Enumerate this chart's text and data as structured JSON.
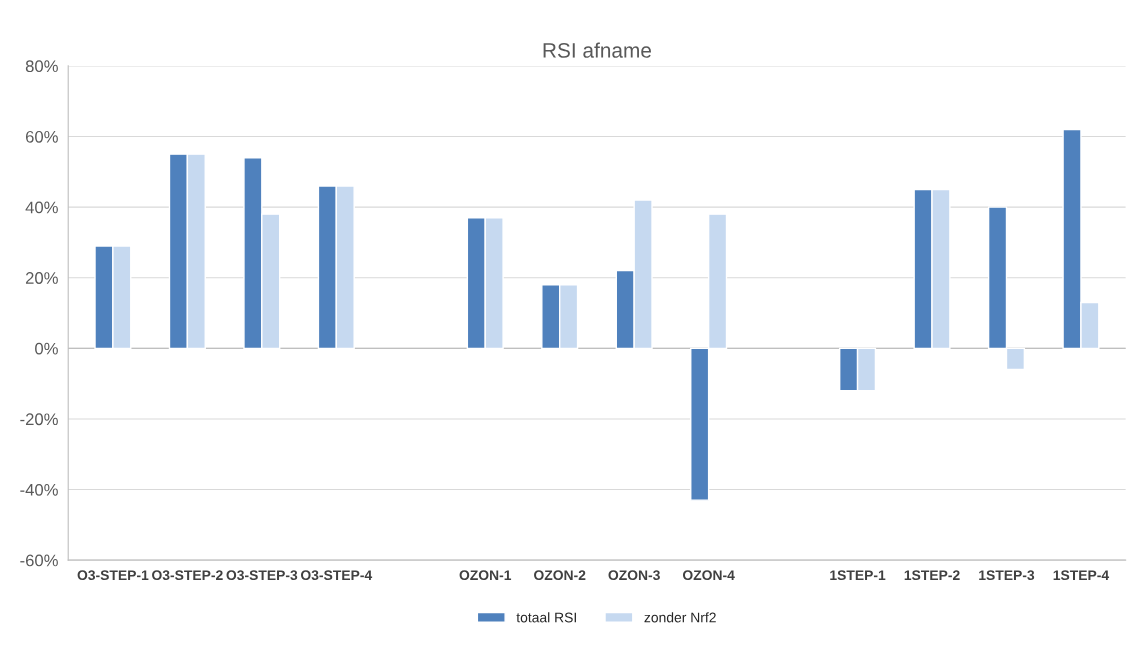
{
  "chart_data": {
    "type": "bar",
    "title": "RSI afname",
    "categories": [
      "O3-STEP-1",
      "O3-STEP-2",
      "O3-STEP-3",
      "O3-STEP-4",
      null,
      "OZON-1",
      "OZON-2",
      "OZON-3",
      "OZON-4",
      null,
      "1STEP-1",
      "1STEP-2",
      "1STEP-3",
      "1STEP-4"
    ],
    "series": [
      {
        "name": "totaal RSI",
        "color": "#4f81bd",
        "values": [
          29,
          55,
          54,
          46,
          null,
          37,
          18,
          22,
          -43,
          null,
          -12,
          45,
          40,
          62
        ]
      },
      {
        "name": "zonder Nrf2",
        "color": "#c6d9f0",
        "values": [
          29,
          55,
          38,
          46,
          null,
          37,
          18,
          42,
          38,
          null,
          -12,
          45,
          -6,
          13
        ]
      }
    ],
    "ylim": [
      -60,
      80
    ],
    "yticks": [
      {
        "value": -60,
        "label": "-60%"
      },
      {
        "value": -40,
        "label": "-40%"
      },
      {
        "value": -20,
        "label": "-20%"
      },
      {
        "value": 0,
        "label": "0%"
      },
      {
        "value": 20,
        "label": "20%"
      },
      {
        "value": 40,
        "label": "40%"
      },
      {
        "value": 60,
        "label": "60%"
      },
      {
        "value": 80,
        "label": "80%"
      }
    ],
    "grid": "y",
    "legend": "bottom"
  }
}
